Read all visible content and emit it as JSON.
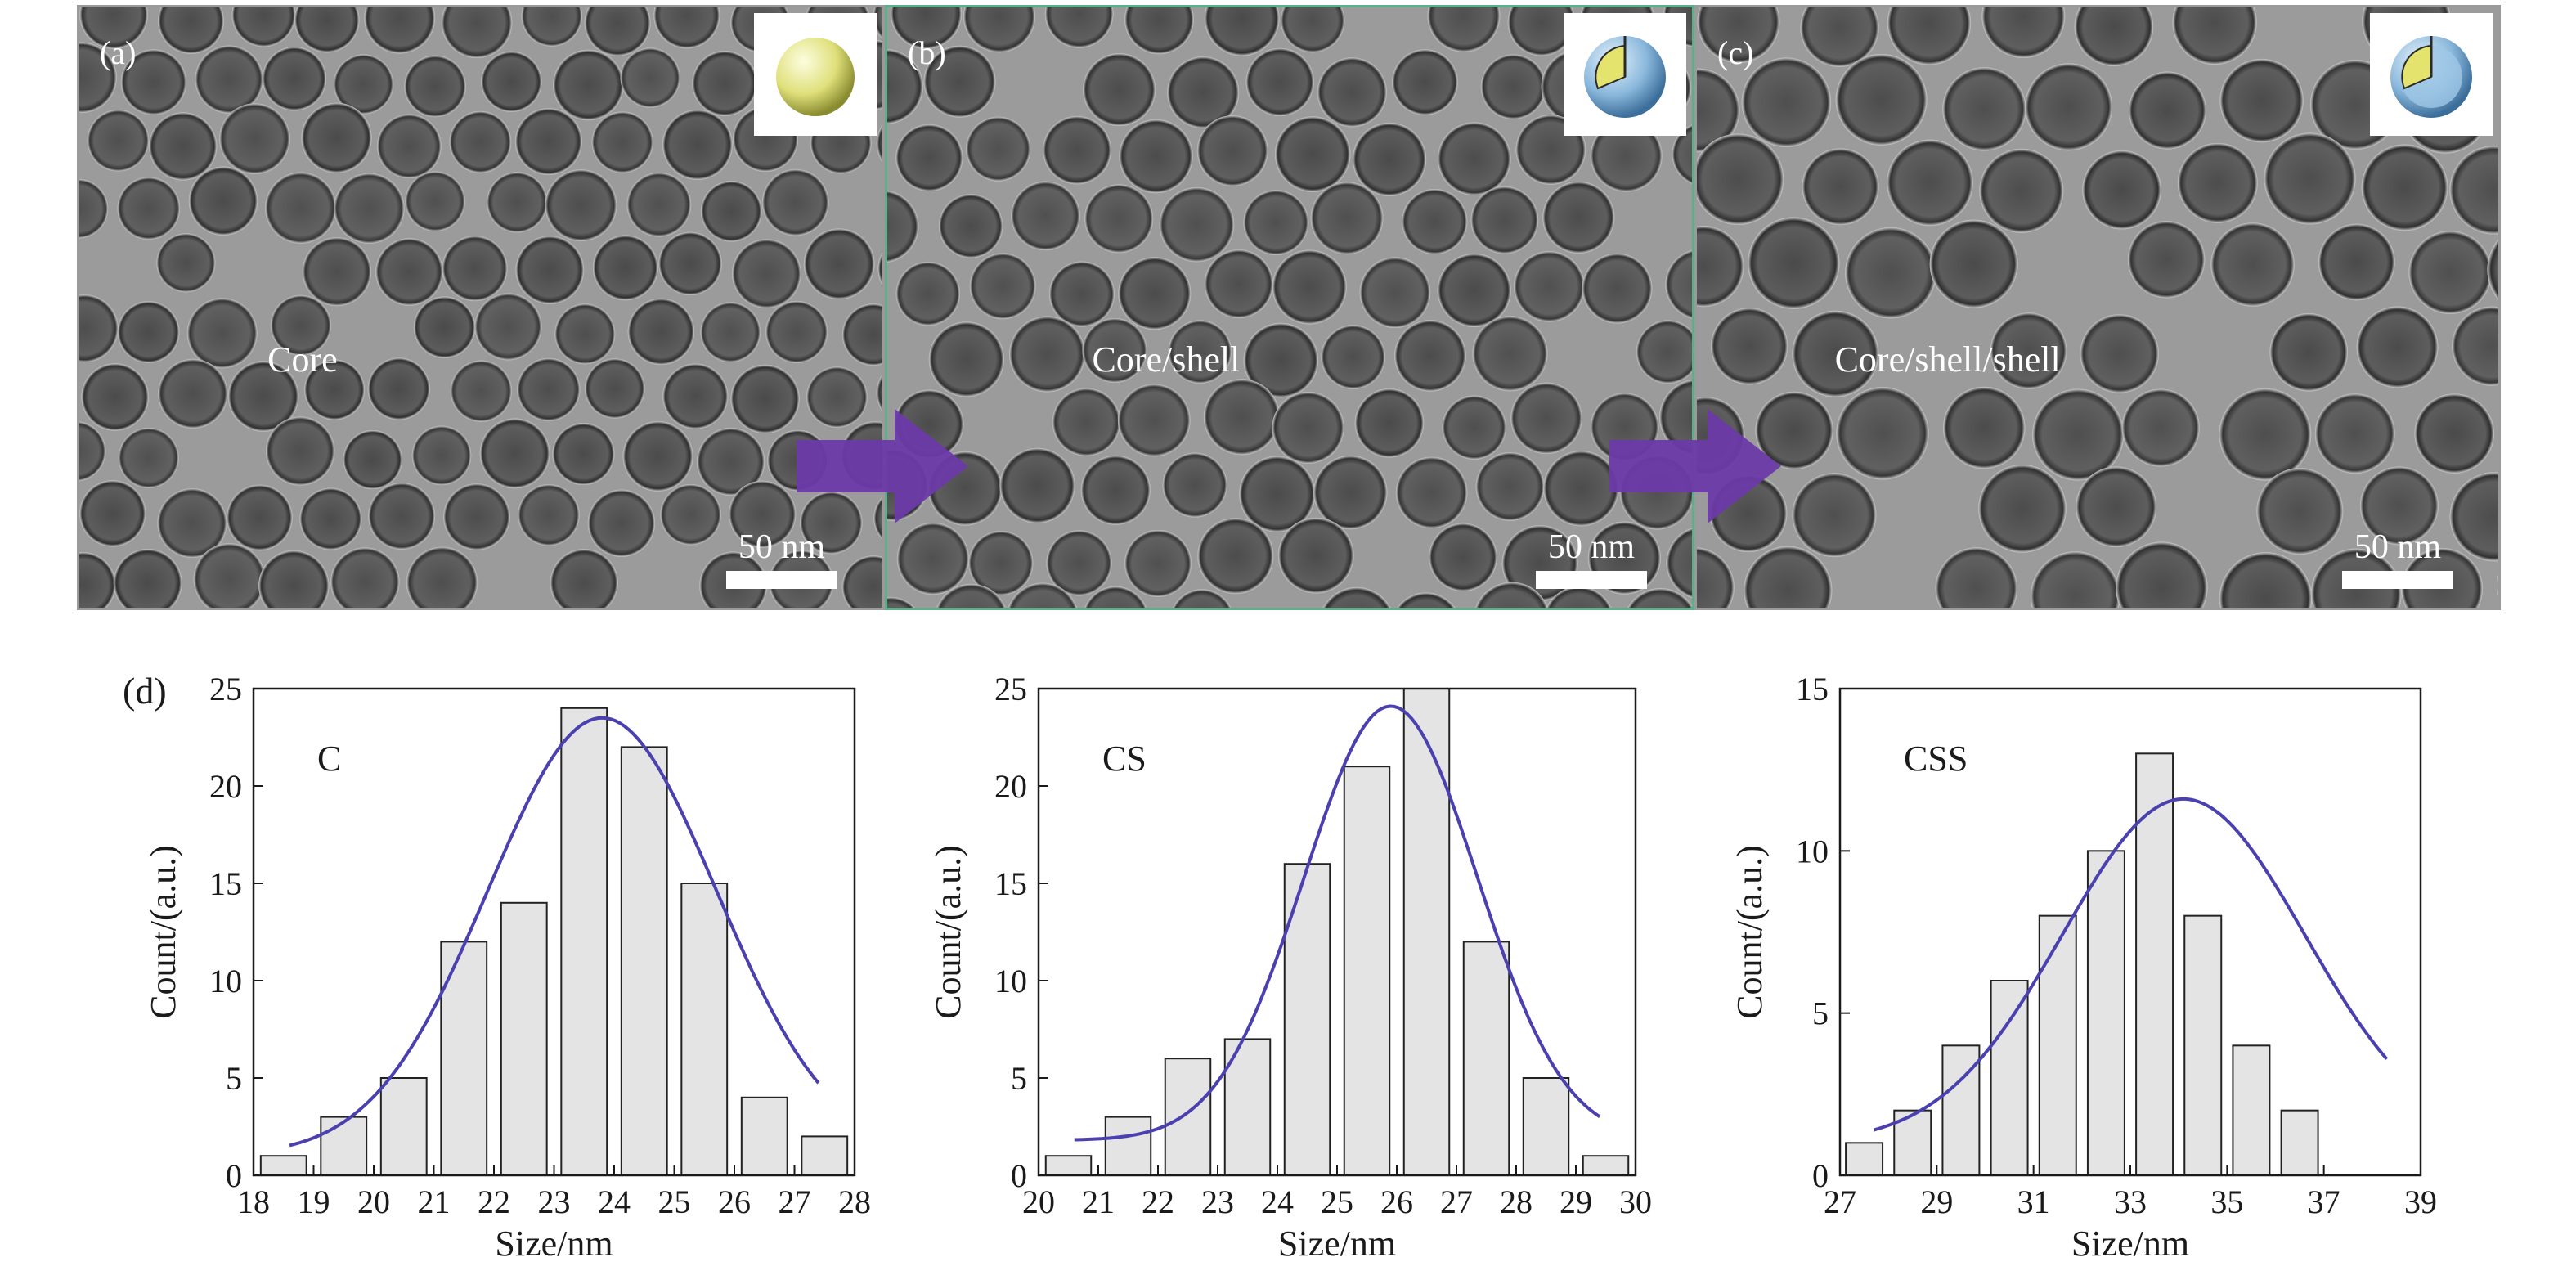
{
  "panels": [
    {
      "letter": "(a)",
      "label": "Core",
      "scale": "50 nm",
      "inset": "core-sphere",
      "border": "#9a9a9a"
    },
    {
      "letter": "(b)",
      "label": "Core/shell",
      "scale": "50 nm",
      "inset": "core-shell-sphere",
      "border": "#5fae8a"
    },
    {
      "letter": "(c)",
      "label": "Core/shell/shell",
      "scale": "50 nm",
      "inset": "core-shell-shell-sphere",
      "border": "#9a9a9a"
    }
  ],
  "arrow_color": "#6a3aa8",
  "d_label": "(d)",
  "chart_data": [
    {
      "type": "bar",
      "label": "C",
      "xlabel": "Size/nm",
      "ylabel": "Count/(a.u.)",
      "xlim": [
        18,
        28
      ],
      "ylim": [
        0,
        25
      ],
      "xticks": [
        18,
        19,
        20,
        21,
        22,
        23,
        24,
        25,
        26,
        27,
        28
      ],
      "yticks": [
        0,
        5,
        10,
        15,
        20,
        25
      ],
      "x": [
        18.5,
        19.5,
        20.5,
        21.5,
        22.5,
        23.5,
        24.5,
        25.5,
        26.5,
        27.5
      ],
      "values": [
        1,
        3,
        5,
        12,
        14,
        24,
        22,
        15,
        4,
        2
      ],
      "fit": {
        "type": "gaussian",
        "amplitude": 22.5,
        "center": 23.8,
        "sigma": 1.9,
        "offset": 1,
        "range": [
          18.6,
          27.4
        ]
      },
      "bar_color": "#e4e4e4",
      "fit_color": "#4a40b0"
    },
    {
      "type": "bar",
      "label": "CS",
      "xlabel": "Size/nm",
      "ylabel": "Count/(a.u.)",
      "xlim": [
        20,
        30
      ],
      "ylim": [
        0,
        25
      ],
      "xticks": [
        20,
        21,
        22,
        23,
        24,
        25,
        26,
        27,
        28,
        29,
        30
      ],
      "yticks": [
        0,
        5,
        10,
        15,
        20,
        25
      ],
      "x": [
        20.5,
        21.5,
        22.5,
        23.5,
        24.5,
        25.5,
        26.5,
        27.5,
        28.5,
        29.5
      ],
      "values": [
        1,
        3,
        6,
        7,
        16,
        21,
        25,
        12,
        5,
        1
      ],
      "fit": {
        "type": "gaussian",
        "amplitude": 22.3,
        "center": 25.9,
        "sigma": 1.45,
        "offset": 1.8,
        "range": [
          20.6,
          29.4
        ]
      },
      "bar_color": "#e4e4e4",
      "fit_color": "#4a40b0"
    },
    {
      "type": "bar",
      "label": "CSS",
      "xlabel": "Size/nm",
      "ylabel": "Count/(a.u.)",
      "xlim": [
        27,
        39
      ],
      "ylim": [
        0,
        15
      ],
      "xticks": [
        27,
        29,
        31,
        33,
        35,
        37,
        39
      ],
      "yticks": [
        0,
        5,
        10,
        15
      ],
      "x": [
        27.5,
        28.5,
        29.5,
        30.5,
        31.5,
        32.5,
        33.5,
        34.5,
        35.5,
        36.5,
        37.5
      ],
      "values": [
        1,
        2,
        4,
        6,
        8,
        10,
        13,
        8,
        4,
        2,
        0
      ],
      "fit": {
        "type": "gaussian",
        "amplitude": 10.6,
        "center": 34.1,
        "sigma": 2.5,
        "offset": 1,
        "range": [
          27.7,
          38.3
        ]
      },
      "bar_color": "#e4e4e4",
      "fit_color": "#4a40b0"
    }
  ]
}
